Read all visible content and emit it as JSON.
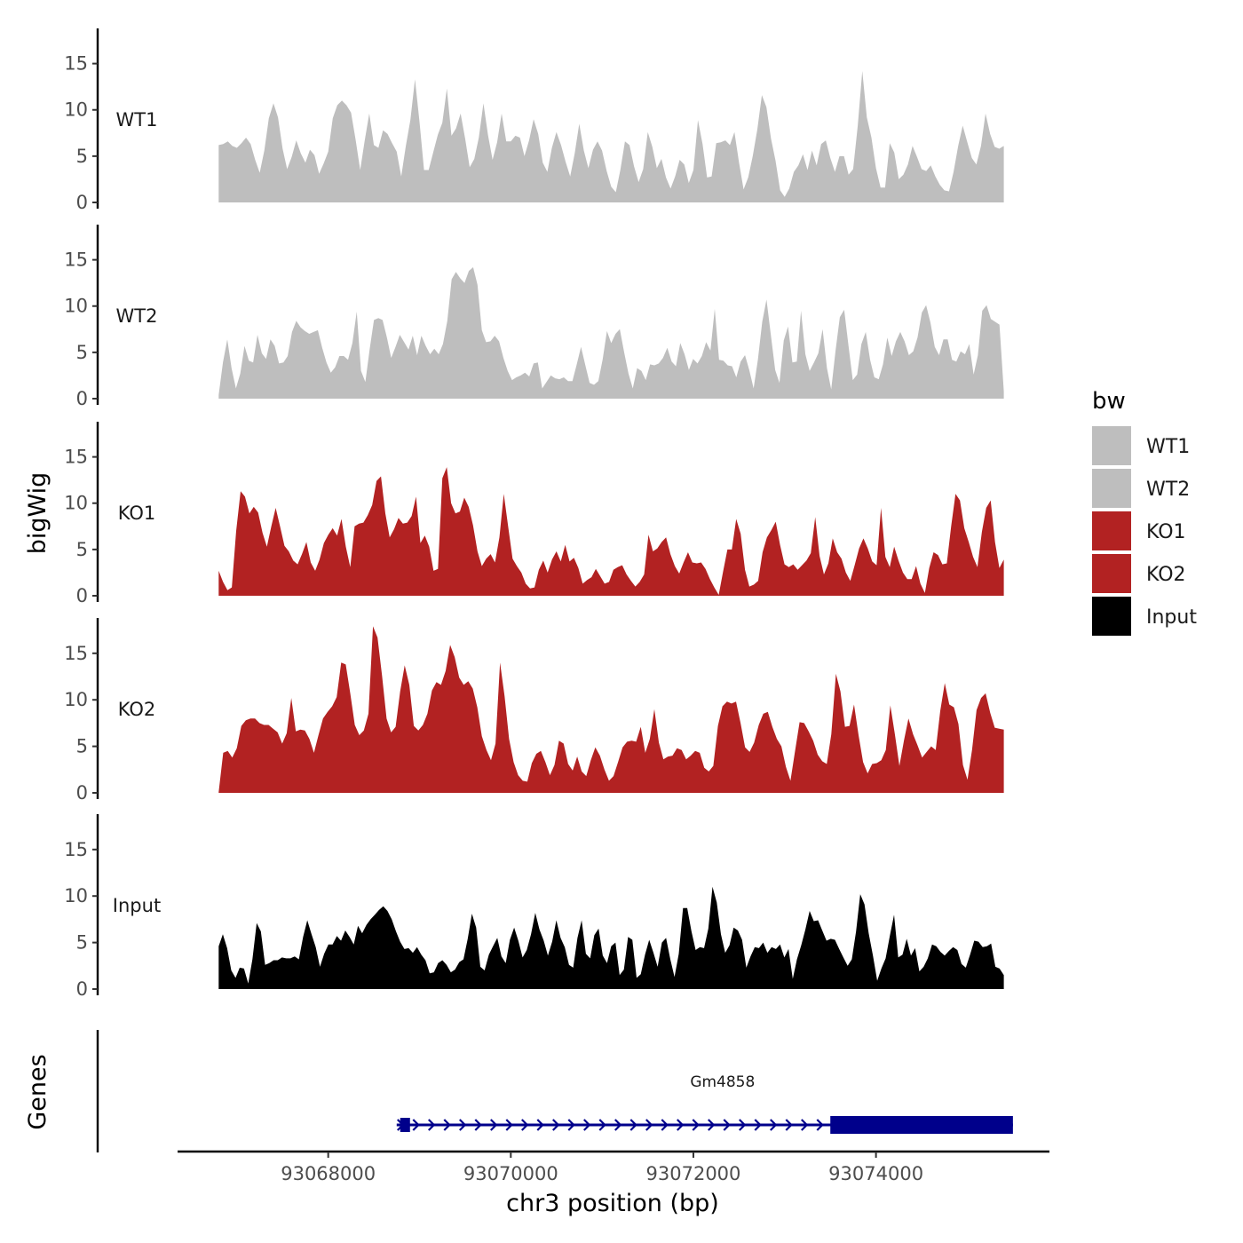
{
  "chart_data": {
    "type": "area",
    "title": "",
    "ylabel": "bigWig",
    "genes_label": "Genes",
    "xlabel": "chr3 position (bp)",
    "xlim": [
      93066350,
      93075900
    ],
    "x_ticks": [
      93068000,
      93070000,
      93072000,
      93074000
    ],
    "x_tick_labels": [
      "93068000",
      "93070000",
      "93072000",
      "93074000"
    ],
    "ylim": [
      0,
      18.8
    ],
    "y_ticks": [
      0,
      5,
      10,
      15
    ],
    "y_tick_labels": [
      "0",
      "5",
      "10",
      "15"
    ],
    "series_x_range": [
      93066800,
      93075400
    ],
    "legend": {
      "title": "bw",
      "position": "right",
      "entries": [
        {
          "name": "WT1",
          "color": "#bebebe"
        },
        {
          "name": "WT2",
          "color": "#bebebe"
        },
        {
          "name": "KO1",
          "color": "#b22222"
        },
        {
          "name": "KO2",
          "color": "#b22222"
        },
        {
          "name": "Input",
          "color": "#000000"
        }
      ]
    },
    "series": [
      {
        "name": "WT1",
        "color": "#bebebe",
        "values": [
          6.2,
          6.3,
          6.6,
          6.1,
          5.9,
          6.4,
          7.0,
          6.3,
          4.6,
          3.2,
          5.6,
          9.1,
          10.7,
          9.2,
          5.8,
          3.6,
          4.9,
          6.7,
          5.3,
          4.3,
          5.7,
          5.1,
          3.1,
          4.2,
          5.5,
          9.1,
          10.5,
          11.0,
          10.5,
          9.7,
          6.8,
          3.5,
          6.7,
          9.6,
          6.2,
          5.9,
          7.8,
          7.4,
          6.4,
          5.5,
          2.8,
          6.1,
          8.9,
          13.3,
          8.7,
          3.5,
          3.5,
          5.4,
          7.3,
          8.6,
          12.3,
          7.2,
          8.0,
          9.6,
          6.9,
          3.8,
          4.7,
          7.0,
          10.7,
          7.3,
          4.6,
          6.5,
          9.6,
          6.6,
          6.6,
          7.2,
          7.0,
          5.0,
          6.7,
          9.0,
          7.4,
          4.3,
          3.3,
          5.9,
          7.6,
          6.2,
          4.4,
          2.8,
          5.3,
          8.5,
          5.6,
          3.7,
          5.7,
          6.6,
          5.6,
          3.4,
          1.7,
          1.1,
          3.5,
          6.6,
          6.2,
          3.9,
          2.2,
          3.6,
          7.6,
          6.0,
          3.7,
          4.7,
          2.7,
          1.5,
          2.8,
          4.6,
          4.1,
          2.1,
          3.5,
          8.9,
          6.3,
          2.7,
          2.8,
          6.4,
          6.5,
          6.7,
          6.2,
          7.6,
          4.3,
          1.4,
          2.7,
          5.0,
          7.9,
          11.6,
          10.3,
          6.9,
          4.5,
          1.3,
          0.6,
          1.5,
          3.3,
          4.0,
          5.2,
          3.5,
          5.6,
          4.0,
          6.3,
          6.7,
          4.8,
          3.3,
          5.0,
          5.0,
          3.0,
          3.6,
          8.3,
          14.2,
          9.2,
          7.0,
          3.7,
          1.6,
          1.6,
          6.4,
          5.4,
          2.5,
          3.0,
          4.1,
          6.1,
          4.9,
          3.6,
          3.4,
          4.0,
          2.8,
          1.9,
          1.3,
          1.2,
          3.3,
          6.1,
          8.3,
          6.5,
          4.8,
          4.1,
          6.1,
          9.6,
          7.4,
          6.0,
          5.8,
          6.1
        ]
      },
      {
        "name": "WT2",
        "color": "#bebebe",
        "values": [
          0.4,
          3.9,
          6.4,
          3.3,
          1.1,
          2.7,
          5.7,
          4.1,
          3.9,
          6.9,
          4.9,
          4.3,
          6.4,
          5.7,
          3.8,
          3.9,
          4.6,
          7.2,
          8.4,
          7.7,
          7.3,
          7.0,
          7.2,
          7.4,
          5.5,
          3.9,
          2.8,
          3.4,
          4.6,
          4.6,
          4.2,
          6.0,
          9.4,
          3.0,
          1.8,
          5.3,
          8.5,
          8.7,
          8.5,
          6.6,
          4.4,
          5.6,
          6.9,
          6.1,
          5.3,
          6.8,
          4.7,
          6.8,
          5.7,
          4.8,
          5.4,
          4.8,
          5.9,
          8.4,
          12.9,
          13.7,
          13.0,
          12.5,
          13.8,
          14.2,
          12.3,
          7.4,
          6.1,
          6.2,
          6.8,
          6.2,
          4.4,
          3.0,
          2.0,
          2.3,
          2.5,
          2.8,
          2.4,
          3.8,
          3.9,
          1.1,
          1.8,
          2.5,
          2.2,
          2.1,
          2.3,
          1.9,
          1.9,
          3.7,
          5.6,
          3.6,
          1.7,
          1.5,
          1.9,
          4.2,
          7.3,
          6.0,
          7.0,
          7.5,
          5.0,
          2.7,
          1.1,
          3.3,
          3.0,
          2.0,
          3.7,
          3.6,
          3.8,
          4.4,
          5.5,
          4.0,
          3.5,
          6.0,
          4.8,
          3.1,
          4.3,
          3.8,
          4.6,
          6.1,
          5.2,
          9.7,
          4.2,
          4.1,
          3.6,
          3.5,
          2.3,
          4.0,
          4.7,
          3.1,
          1.1,
          4.2,
          8.3,
          10.7,
          6.9,
          3.1,
          1.7,
          6.3,
          7.8,
          3.9,
          4.0,
          9.5,
          4.8,
          3.0,
          3.9,
          4.9,
          7.5,
          3.3,
          1.0,
          5.2,
          8.8,
          9.6,
          5.7,
          2.0,
          2.6,
          5.9,
          7.2,
          4.2,
          2.3,
          2.1,
          3.7,
          6.6,
          4.6,
          6.2,
          7.2,
          6.2,
          4.7,
          5.1,
          6.6,
          9.3,
          10.1,
          8.2,
          5.6,
          4.7,
          6.4,
          6.4,
          4.2,
          4.0,
          5.1,
          4.8,
          5.9,
          2.6,
          4.7,
          9.5,
          10.1,
          8.6,
          8.3,
          8.0,
          0.8
        ]
      },
      {
        "name": "KO1",
        "color": "#b22222",
        "values": [
          2.7,
          1.5,
          0.6,
          0.9,
          7.0,
          11.3,
          10.7,
          8.9,
          9.6,
          9.0,
          6.8,
          5.3,
          7.5,
          9.5,
          7.5,
          5.4,
          4.8,
          3.8,
          3.4,
          4.5,
          5.8,
          3.6,
          2.7,
          3.9,
          5.7,
          6.6,
          7.3,
          6.5,
          8.3,
          5.3,
          3.1,
          7.5,
          7.8,
          7.9,
          8.7,
          9.8,
          12.4,
          12.9,
          8.9,
          6.3,
          7.2,
          8.4,
          7.8,
          7.9,
          8.6,
          10.7,
          5.7,
          6.5,
          5.3,
          2.7,
          2.9,
          12.7,
          13.9,
          10.0,
          8.9,
          9.1,
          10.6,
          9.6,
          7.6,
          4.8,
          3.2,
          4.0,
          4.5,
          3.6,
          6.3,
          11.0,
          7.5,
          4.0,
          3.2,
          2.5,
          1.3,
          0.8,
          0.9,
          2.8,
          3.8,
          2.5,
          3.9,
          4.8,
          3.7,
          5.5,
          3.7,
          4.1,
          3.0,
          1.3,
          1.7,
          2.0,
          2.9,
          2.1,
          1.3,
          1.5,
          2.8,
          3.1,
          3.3,
          2.3,
          1.6,
          1.0,
          1.5,
          2.3,
          6.6,
          4.8,
          5.1,
          5.8,
          6.3,
          4.5,
          3.2,
          2.4,
          3.6,
          4.7,
          3.6,
          3.5,
          3.6,
          2.9,
          1.8,
          0.9,
          0.1,
          2.6,
          5.0,
          5.0,
          8.3,
          6.7,
          2.8,
          1.0,
          1.2,
          1.6,
          4.7,
          6.3,
          7.1,
          8.0,
          5.5,
          3.4,
          3.1,
          3.4,
          2.8,
          3.3,
          3.8,
          4.6,
          8.5,
          4.3,
          2.3,
          3.5,
          6.2,
          4.7,
          4.0,
          2.5,
          1.6,
          3.3,
          5.1,
          6.2,
          5.1,
          3.7,
          3.3,
          9.5,
          4.2,
          3.1,
          5.3,
          3.8,
          2.5,
          1.8,
          1.8,
          3.2,
          1.3,
          0.3,
          3.0,
          4.7,
          4.4,
          3.4,
          3.5,
          7.5,
          11.0,
          10.3,
          7.3,
          5.8,
          4.2,
          3.1,
          6.9,
          9.5,
          10.3,
          5.8,
          3.0,
          3.9
        ]
      },
      {
        "name": "KO2",
        "color": "#b22222",
        "values": [
          0.1,
          4.3,
          4.5,
          3.8,
          4.8,
          7.2,
          7.8,
          8.0,
          8.0,
          7.5,
          7.3,
          7.3,
          6.9,
          6.5,
          5.3,
          6.4,
          10.2,
          6.6,
          6.8,
          6.7,
          5.8,
          4.3,
          6.2,
          8.0,
          8.7,
          9.3,
          10.3,
          14.0,
          13.8,
          10.7,
          7.3,
          6.2,
          6.7,
          8.5,
          17.9,
          16.7,
          12.6,
          8.0,
          6.5,
          7.1,
          10.9,
          13.7,
          11.6,
          7.2,
          6.7,
          7.3,
          8.5,
          11.0,
          11.9,
          11.6,
          13.1,
          15.9,
          14.6,
          12.4,
          11.6,
          12.0,
          11.2,
          9.2,
          6.1,
          4.6,
          3.5,
          5.3,
          14.0,
          10.4,
          5.8,
          3.3,
          1.9,
          1.3,
          1.2,
          3.2,
          4.2,
          4.5,
          3.3,
          1.9,
          3.0,
          5.6,
          5.3,
          3.1,
          2.4,
          3.9,
          2.3,
          1.8,
          3.5,
          4.9,
          4.0,
          2.5,
          1.3,
          1.8,
          3.3,
          4.9,
          5.5,
          5.6,
          5.5,
          7.1,
          4.3,
          5.8,
          9.0,
          5.4,
          3.6,
          3.9,
          4.0,
          4.8,
          4.6,
          3.6,
          4.0,
          4.5,
          4.3,
          2.7,
          2.3,
          2.9,
          7.2,
          9.3,
          9.8,
          9.6,
          9.8,
          7.5,
          4.9,
          4.4,
          5.4,
          7.3,
          8.5,
          8.7,
          7.1,
          5.8,
          5.0,
          2.8,
          1.3,
          4.5,
          7.6,
          7.5,
          6.6,
          5.6,
          4.1,
          3.4,
          3.1,
          6.3,
          12.8,
          10.9,
          7.1,
          7.2,
          9.5,
          6.2,
          3.3,
          2.1,
          3.1,
          3.2,
          3.5,
          4.6,
          9.4,
          6.3,
          2.9,
          5.6,
          8.0,
          6.3,
          5.1,
          3.8,
          4.4,
          5.0,
          4.6,
          8.8,
          11.8,
          9.5,
          9.2,
          7.4,
          3.0,
          1.4,
          4.6,
          8.9,
          10.2,
          10.7,
          8.6,
          7.0,
          6.9,
          6.8
        ]
      },
      {
        "name": "Input",
        "color": "#000000",
        "values": [
          4.6,
          5.9,
          4.4,
          2.0,
          1.2,
          2.3,
          2.2,
          0.6,
          3.2,
          7.1,
          6.2,
          2.6,
          2.8,
          3.1,
          3.1,
          3.4,
          3.3,
          3.3,
          3.5,
          3.2,
          5.6,
          7.4,
          5.9,
          4.5,
          2.4,
          3.8,
          4.8,
          4.8,
          5.7,
          5.2,
          6.3,
          5.6,
          4.8,
          6.8,
          6.0,
          6.9,
          7.5,
          8.0,
          8.5,
          8.9,
          8.4,
          7.5,
          6.2,
          5.1,
          4.3,
          4.4,
          3.9,
          4.5,
          3.7,
          3.1,
          1.7,
          1.8,
          2.8,
          3.1,
          2.6,
          1.8,
          2.1,
          2.9,
          3.2,
          5.4,
          8.1,
          6.6,
          2.4,
          2.0,
          3.7,
          4.6,
          5.5,
          3.5,
          2.8,
          5.3,
          6.6,
          5.2,
          3.4,
          4.2,
          5.9,
          8.2,
          6.4,
          5.2,
          3.6,
          5.1,
          7.4,
          5.5,
          4.5,
          2.6,
          2.3,
          5.5,
          7.4,
          3.8,
          3.3,
          5.8,
          6.5,
          3.6,
          2.8,
          4.6,
          5.0,
          1.5,
          2.1,
          5.6,
          5.3,
          1.2,
          1.6,
          3.7,
          5.3,
          3.9,
          2.4,
          5.0,
          5.5,
          3.2,
          1.3,
          3.8,
          8.7,
          8.7,
          6.2,
          4.2,
          4.5,
          4.4,
          6.5,
          11.0,
          9.3,
          5.9,
          3.9,
          4.7,
          6.6,
          6.3,
          5.3,
          2.3,
          3.5,
          4.5,
          4.4,
          5.0,
          3.9,
          4.5,
          4.3,
          4.8,
          3.4,
          4.3,
          1.1,
          3.2,
          4.7,
          6.4,
          8.4,
          7.3,
          7.4,
          6.3,
          5.2,
          5.4,
          5.3,
          4.3,
          3.4,
          2.5,
          3.2,
          6.2,
          10.2,
          9.1,
          6.0,
          3.6,
          0.9,
          2.2,
          3.3,
          5.7,
          8.0,
          3.4,
          3.7,
          5.4,
          3.6,
          4.4,
          1.9,
          2.4,
          3.3,
          4.8,
          4.6,
          4.0,
          3.6,
          4.1,
          4.5,
          4.2,
          2.7,
          2.3,
          3.7,
          5.2,
          5.1,
          4.5,
          4.6,
          4.9,
          2.4,
          2.2,
          1.5
        ]
      }
    ],
    "genes": [
      {
        "name": "Gm4858",
        "start": 93068750,
        "end": 93075500,
        "strand": "+",
        "thick_start": 93073500,
        "thick_end": 93075500
      }
    ]
  }
}
